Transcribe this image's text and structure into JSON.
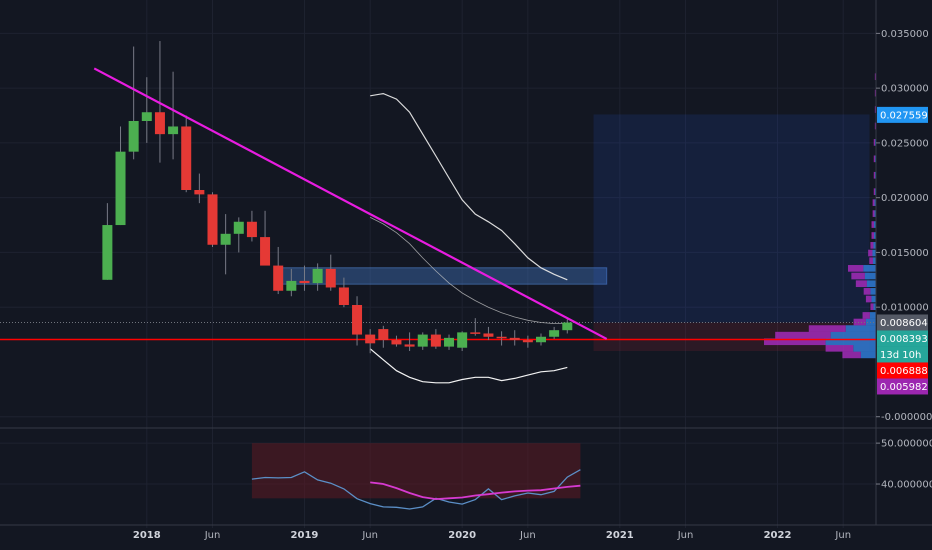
{
  "chart_data": {
    "type": "candlestick",
    "title": "",
    "grid": true,
    "price_axis": {
      "ticks": [
        "0.035000",
        "0.030000",
        "0.025000",
        "0.020000",
        "0.015000",
        "0.010000",
        "-0.000000"
      ],
      "tick_values": [
        0.035,
        0.03,
        0.025,
        0.02,
        0.015,
        0.01,
        0.0
      ],
      "ylim": [
        -0.0003,
        0.0375
      ]
    },
    "indicator_axis": {
      "ticks": [
        "50.000000",
        "40.000000"
      ],
      "tick_values": [
        50,
        40
      ],
      "ylim": [
        31.2,
        51.5
      ]
    },
    "time_axis": {
      "labels": [
        {
          "label": "2018",
          "date": "2018-01",
          "bold": true
        },
        {
          "label": "Jun",
          "date": "2018-06",
          "bold": false
        },
        {
          "label": "2019",
          "date": "2019-01",
          "bold": true
        },
        {
          "label": "Jun",
          "date": "2019-06",
          "bold": false
        },
        {
          "label": "2020",
          "date": "2020-01",
          "bold": true
        },
        {
          "label": "Jun",
          "date": "2020-06",
          "bold": false
        },
        {
          "label": "2021",
          "date": "2021-01",
          "bold": true
        },
        {
          "label": "Jun",
          "date": "2021-06",
          "bold": false
        },
        {
          "label": "2022",
          "date": "2022-01",
          "bold": true
        },
        {
          "label": "Jun",
          "date": "2022-06",
          "bold": false
        }
      ]
    },
    "price_badges": [
      {
        "label": "0.027559",
        "value": 0.027559,
        "color": "#2196f3"
      },
      {
        "label": "0.008604",
        "value": 0.008604,
        "color": "#555a66"
      },
      {
        "label": "0.008393",
        "value": 0.008393,
        "color": "#26a69a"
      },
      {
        "label": "13d 10h",
        "value": 0.00722,
        "color": "#26a69a"
      },
      {
        "label": "0.006888",
        "value": 0.006888,
        "color": "#ff0000"
      },
      {
        "label": "0.005982",
        "value": 0.005982,
        "color": "#9c27b0"
      }
    ],
    "candles": [
      {
        "date": "2017-10",
        "o": 0.0125,
        "h": 0.0195,
        "l": 0.0125,
        "c": 0.0175
      },
      {
        "date": "2017-11",
        "o": 0.0175,
        "h": 0.0265,
        "l": 0.0175,
        "c": 0.0242
      },
      {
        "date": "2017-12",
        "o": 0.0242,
        "h": 0.0338,
        "l": 0.0235,
        "c": 0.027
      },
      {
        "date": "2018-01",
        "o": 0.027,
        "h": 0.031,
        "l": 0.025,
        "c": 0.0278
      },
      {
        "date": "2018-02",
        "o": 0.0278,
        "h": 0.0343,
        "l": 0.0232,
        "c": 0.0258
      },
      {
        "date": "2018-03",
        "o": 0.0258,
        "h": 0.0315,
        "l": 0.0235,
        "c": 0.0265
      },
      {
        "date": "2018-04",
        "o": 0.0265,
        "h": 0.0275,
        "l": 0.0205,
        "c": 0.0207
      },
      {
        "date": "2018-05",
        "o": 0.0207,
        "h": 0.0222,
        "l": 0.0195,
        "c": 0.0203
      },
      {
        "date": "2018-06",
        "o": 0.0203,
        "h": 0.0205,
        "l": 0.0155,
        "c": 0.0157
      },
      {
        "date": "2018-07",
        "o": 0.0157,
        "h": 0.0185,
        "l": 0.013,
        "c": 0.0167
      },
      {
        "date": "2018-08",
        "o": 0.0167,
        "h": 0.0182,
        "l": 0.015,
        "c": 0.0178
      },
      {
        "date": "2018-09",
        "o": 0.0178,
        "h": 0.0188,
        "l": 0.016,
        "c": 0.0164
      },
      {
        "date": "2018-10",
        "o": 0.0164,
        "h": 0.0188,
        "l": 0.014,
        "c": 0.0138
      },
      {
        "date": "2018-11",
        "o": 0.0138,
        "h": 0.0155,
        "l": 0.0112,
        "c": 0.0115
      },
      {
        "date": "2018-12",
        "o": 0.0115,
        "h": 0.0135,
        "l": 0.011,
        "c": 0.0124
      },
      {
        "date": "2019-01",
        "o": 0.0124,
        "h": 0.0138,
        "l": 0.0115,
        "c": 0.0122
      },
      {
        "date": "2019-02",
        "o": 0.0122,
        "h": 0.014,
        "l": 0.0115,
        "c": 0.0135
      },
      {
        "date": "2019-03",
        "o": 0.0135,
        "h": 0.0148,
        "l": 0.0115,
        "c": 0.0118
      },
      {
        "date": "2019-04",
        "o": 0.0118,
        "h": 0.0127,
        "l": 0.01,
        "c": 0.0102
      },
      {
        "date": "2019-05",
        "o": 0.0102,
        "h": 0.011,
        "l": 0.0065,
        "c": 0.0075
      },
      {
        "date": "2019-06",
        "o": 0.0075,
        "h": 0.008,
        "l": 0.0058,
        "c": 0.0067
      },
      {
        "date": "2019-07",
        "o": 0.008,
        "h": 0.0083,
        "l": 0.0063,
        "c": 0.007
      },
      {
        "date": "2019-08",
        "o": 0.007,
        "h": 0.0074,
        "l": 0.0064,
        "c": 0.0066
      },
      {
        "date": "2019-09",
        "o": 0.0066,
        "h": 0.0077,
        "l": 0.006,
        "c": 0.0064
      },
      {
        "date": "2019-10",
        "o": 0.0064,
        "h": 0.0077,
        "l": 0.0061,
        "c": 0.0075
      },
      {
        "date": "2019-11",
        "o": 0.0075,
        "h": 0.008,
        "l": 0.0062,
        "c": 0.0064
      },
      {
        "date": "2019-12",
        "o": 0.0064,
        "h": 0.0075,
        "l": 0.0061,
        "c": 0.0072
      },
      {
        "date": "2020-01",
        "o": 0.0063,
        "h": 0.0078,
        "l": 0.006,
        "c": 0.0077
      },
      {
        "date": "2020-02",
        "o": 0.0077,
        "h": 0.009,
        "l": 0.0074,
        "c": 0.0076
      },
      {
        "date": "2020-03",
        "o": 0.0076,
        "h": 0.0082,
        "l": 0.007,
        "c": 0.0073
      },
      {
        "date": "2020-04",
        "o": 0.0073,
        "h": 0.0078,
        "l": 0.0065,
        "c": 0.0072
      },
      {
        "date": "2020-05",
        "o": 0.0072,
        "h": 0.0079,
        "l": 0.0065,
        "c": 0.007
      },
      {
        "date": "2020-06",
        "o": 0.007,
        "h": 0.0074,
        "l": 0.0063,
        "c": 0.0068
      },
      {
        "date": "2020-07",
        "o": 0.0068,
        "h": 0.0076,
        "l": 0.0065,
        "c": 0.0073
      },
      {
        "date": "2020-08",
        "o": 0.0073,
        "h": 0.0082,
        "l": 0.0071,
        "c": 0.0079
      },
      {
        "date": "2020-09",
        "o": 0.0079,
        "h": 0.0089,
        "l": 0.0076,
        "c": 0.0086
      }
    ],
    "series": [
      {
        "kind": "upper_band",
        "color": "#e6e6e6",
        "points": [
          [
            "2019-06",
            0.0293
          ],
          [
            "2019-07",
            0.0295
          ],
          [
            "2019-08",
            0.029
          ],
          [
            "2019-09",
            0.0278
          ],
          [
            "2019-10",
            0.0258
          ],
          [
            "2019-11",
            0.0238
          ],
          [
            "2019-12",
            0.0218
          ],
          [
            "2020-01",
            0.0198
          ],
          [
            "2020-02",
            0.0185
          ],
          [
            "2020-03",
            0.0178
          ],
          [
            "2020-04",
            0.017
          ],
          [
            "2020-05",
            0.0158
          ],
          [
            "2020-06",
            0.0145
          ],
          [
            "2020-07",
            0.0136
          ],
          [
            "2020-08",
            0.013
          ],
          [
            "2020-09",
            0.0125
          ]
        ]
      },
      {
        "kind": "middle_band",
        "color": "#c9c9c9",
        "points": [
          [
            "2019-06",
            0.0182
          ],
          [
            "2019-07",
            0.0176
          ],
          [
            "2019-08",
            0.0168
          ],
          [
            "2019-09",
            0.0158
          ],
          [
            "2019-10",
            0.0145
          ],
          [
            "2019-11",
            0.0133
          ],
          [
            "2019-12",
            0.0122
          ],
          [
            "2020-01",
            0.0113
          ],
          [
            "2020-02",
            0.0106
          ],
          [
            "2020-03",
            0.01
          ],
          [
            "2020-04",
            0.0095
          ],
          [
            "2020-05",
            0.0091
          ],
          [
            "2020-06",
            0.0088
          ],
          [
            "2020-07",
            0.0086
          ],
          [
            "2020-08",
            0.0085
          ],
          [
            "2020-09",
            0.0085
          ]
        ]
      },
      {
        "kind": "lower_band",
        "color": "#ffffff",
        "points": [
          [
            "2019-06",
            0.0062
          ],
          [
            "2019-07",
            0.0052
          ],
          [
            "2019-08",
            0.0042
          ],
          [
            "2019-09",
            0.0036
          ],
          [
            "2019-10",
            0.0032
          ],
          [
            "2019-11",
            0.0031
          ],
          [
            "2019-12",
            0.0031
          ],
          [
            "2020-01",
            0.0034
          ],
          [
            "2020-02",
            0.0036
          ],
          [
            "2020-03",
            0.0036
          ],
          [
            "2020-04",
            0.0033
          ],
          [
            "2020-05",
            0.0035
          ],
          [
            "2020-06",
            0.0038
          ],
          [
            "2020-07",
            0.0041
          ],
          [
            "2020-08",
            0.0042
          ],
          [
            "2020-09",
            0.0045
          ]
        ]
      }
    ],
    "trendline": {
      "color": "#e81ce0",
      "from": [
        "2017-09",
        0.0318
      ],
      "to": [
        "2020-12",
        0.0071
      ]
    },
    "support_line": {
      "color": "#ff0000",
      "value": 0.00705
    },
    "zones": [
      {
        "kind": "resistance_box",
        "color": "#3d6eb5",
        "from": "2018-11",
        "to": "2020-12",
        "y0": 0.0121,
        "y1": 0.0136
      },
      {
        "kind": "long_position_target",
        "color": "#2962ff",
        "from": "2020-11",
        "to": "2022-08",
        "y0": 0.0086,
        "y1": 0.0276
      },
      {
        "kind": "long_position_stop",
        "color": "#b2243a",
        "from": "2020-11",
        "to": "2022-08",
        "y0": 0.006,
        "y1": 0.0086
      }
    ],
    "volume_profile": [
      {
        "price": 0.0056,
        "value": 0.3
      },
      {
        "price": 0.0062,
        "value": 0.45
      },
      {
        "price": 0.0068,
        "value": 1.0
      },
      {
        "price": 0.0074,
        "value": 0.9
      },
      {
        "price": 0.008,
        "value": 0.6
      },
      {
        "price": 0.0086,
        "value": 0.2
      },
      {
        "price": 0.0092,
        "value": 0.12
      },
      {
        "price": 0.01,
        "value": 0.05
      },
      {
        "price": 0.0107,
        "value": 0.09
      },
      {
        "price": 0.0114,
        "value": 0.11
      },
      {
        "price": 0.0121,
        "value": 0.18
      },
      {
        "price": 0.0128,
        "value": 0.22
      },
      {
        "price": 0.0135,
        "value": 0.25
      },
      {
        "price": 0.0142,
        "value": 0.06
      },
      {
        "price": 0.0149,
        "value": 0.07
      },
      {
        "price": 0.0156,
        "value": 0.05
      },
      {
        "price": 0.0165,
        "value": 0.04
      },
      {
        "price": 0.0175,
        "value": 0.04
      },
      {
        "price": 0.0185,
        "value": 0.03
      },
      {
        "price": 0.0195,
        "value": 0.03
      },
      {
        "price": 0.0205,
        "value": 0.02
      },
      {
        "price": 0.022,
        "value": 0.02
      },
      {
        "price": 0.0235,
        "value": 0.02
      },
      {
        "price": 0.025,
        "value": 0.02
      },
      {
        "price": 0.0265,
        "value": 0.01
      },
      {
        "price": 0.028,
        "value": 0.01
      },
      {
        "price": 0.0295,
        "value": 0.01
      },
      {
        "price": 0.031,
        "value": 0.01
      }
    ],
    "indicator": {
      "line": {
        "color": "#5b8fc7",
        "points": [
          [
            "2018-09",
            41.2
          ],
          [
            "2018-10",
            41.6
          ],
          [
            "2018-11",
            41.5
          ],
          [
            "2018-12",
            41.6
          ],
          [
            "2019-01",
            43.0
          ],
          [
            "2019-02",
            41.0
          ],
          [
            "2019-03",
            40.2
          ],
          [
            "2019-04",
            38.8
          ],
          [
            "2019-05",
            36.4
          ],
          [
            "2019-06",
            35.2
          ],
          [
            "2019-07",
            34.4
          ],
          [
            "2019-08",
            34.3
          ],
          [
            "2019-09",
            33.9
          ],
          [
            "2019-10",
            34.4
          ],
          [
            "2019-11",
            36.5
          ],
          [
            "2019-12",
            35.6
          ],
          [
            "2020-01",
            35.1
          ],
          [
            "2020-02",
            36.2
          ],
          [
            "2020-03",
            38.8
          ],
          [
            "2020-04",
            36.2
          ],
          [
            "2020-05",
            37.1
          ],
          [
            "2020-06",
            37.8
          ],
          [
            "2020-07",
            37.4
          ],
          [
            "2020-08",
            38.2
          ],
          [
            "2020-09",
            41.7
          ],
          [
            "2020-10",
            43.5
          ]
        ]
      },
      "signal": {
        "color": "#d63ad0",
        "points": [
          [
            "2019-06",
            40.4
          ],
          [
            "2019-07",
            40.0
          ],
          [
            "2019-08",
            39.0
          ],
          [
            "2019-09",
            37.8
          ],
          [
            "2019-10",
            36.8
          ],
          [
            "2019-11",
            36.3
          ],
          [
            "2019-12",
            36.5
          ],
          [
            "2020-01",
            36.7
          ],
          [
            "2020-02",
            37.2
          ],
          [
            "2020-03",
            37.5
          ],
          [
            "2020-04",
            37.9
          ],
          [
            "2020-05",
            38.2
          ],
          [
            "2020-06",
            38.4
          ],
          [
            "2020-07",
            38.5
          ],
          [
            "2020-08",
            38.9
          ],
          [
            "2020-09",
            39.3
          ],
          [
            "2020-10",
            39.6
          ]
        ]
      },
      "shade": {
        "color": "#5c1a22",
        "from": "2018-09",
        "to": "2020-10",
        "y0": 36.5,
        "y1": 50.0
      }
    }
  }
}
